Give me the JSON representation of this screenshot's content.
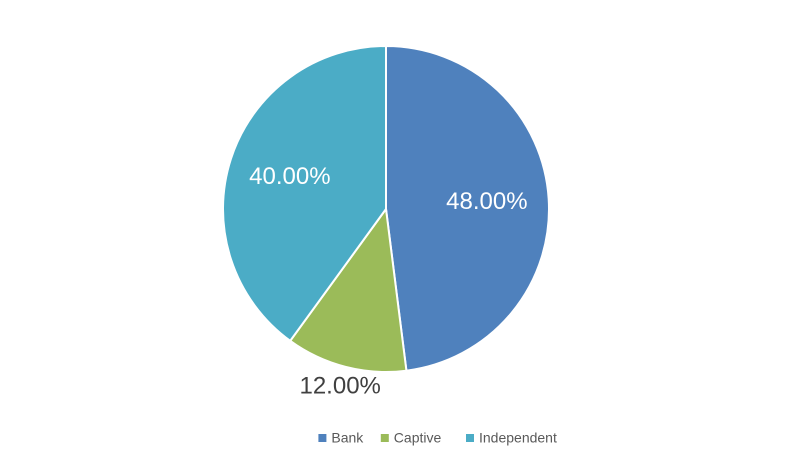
{
  "chart_data": {
    "type": "pie",
    "categories": [
      "Bank",
      "Captive",
      "Independent"
    ],
    "values": [
      48,
      12,
      40
    ],
    "value_labels": [
      "48.00%",
      "12.00%",
      "40.00%"
    ],
    "colors": [
      "#4f81bd",
      "#9bbb59",
      "#4bacc6"
    ],
    "legend": "bottom"
  }
}
